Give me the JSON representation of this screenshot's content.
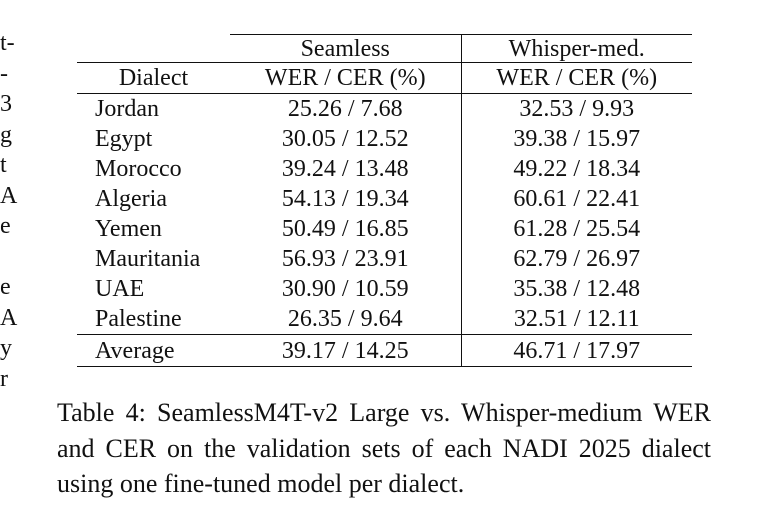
{
  "left_margin_fragments": [
    "t-",
    "-",
    "3",
    "g",
    "t",
    "A",
    "e",
    "",
    "e",
    "A",
    "y",
    "r"
  ],
  "table": {
    "group_headers": [
      "Seamless",
      "Whisper-med."
    ],
    "column_headers": [
      "Dialect",
      "WER / CER (%)",
      "WER / CER (%)"
    ],
    "rows": [
      {
        "dialect": "Jordan",
        "seamless": "25.26 / 7.68",
        "whisper": "32.53 / 9.93"
      },
      {
        "dialect": "Egypt",
        "seamless": "30.05 / 12.52",
        "whisper": "39.38 / 15.97"
      },
      {
        "dialect": "Morocco",
        "seamless": "39.24 / 13.48",
        "whisper": "49.22 / 18.34"
      },
      {
        "dialect": "Algeria",
        "seamless": "54.13 / 19.34",
        "whisper": "60.61 / 22.41"
      },
      {
        "dialect": "Yemen",
        "seamless": "50.49 / 16.85",
        "whisper": "61.28 / 25.54"
      },
      {
        "dialect": "Mauritania",
        "seamless": "56.93 / 23.91",
        "whisper": "62.79 / 26.97"
      },
      {
        "dialect": "UAE",
        "seamless": "30.90 / 10.59",
        "whisper": "35.38 / 12.48"
      },
      {
        "dialect": "Palestine",
        "seamless": "26.35 / 9.64",
        "whisper": "32.51 / 12.11"
      }
    ],
    "average": {
      "dialect": "Average",
      "seamless": "39.17 / 14.25",
      "whisper": "46.71 / 17.97"
    }
  },
  "caption": "Table 4: SeamlessM4T-v2 Large vs. Whisper-medium WER and CER on the validation sets of each NADI 2025 dialect using one fine-tuned model per dialect."
}
